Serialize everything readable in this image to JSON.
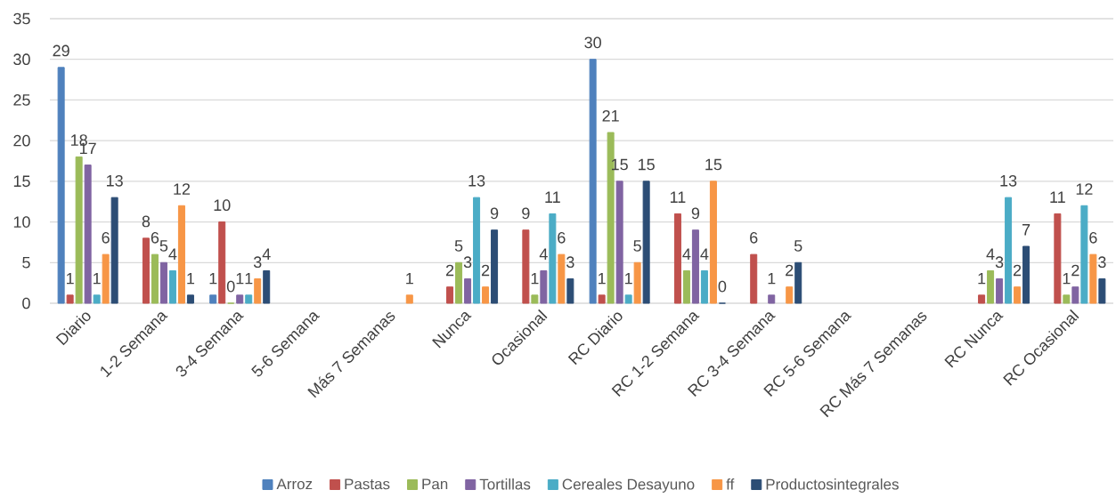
{
  "chart_data": {
    "type": "bar",
    "categories": [
      "Diario",
      "1-2 Semana",
      "3-4 Semana",
      "5-6 Semana",
      "Más 7 Semanas",
      "Nunca",
      "Ocasional",
      "RC Diario",
      "RC 1-2 Semana",
      "RC 3-4 Semana",
      "RC 5-6 Semana",
      "RC Más 7 Semanas",
      "RC Nunca",
      "RC Ocasional"
    ],
    "series": [
      {
        "name": "Arroz",
        "color": "#4f81bd",
        "values": [
          29,
          null,
          1,
          null,
          null,
          null,
          null,
          30,
          null,
          null,
          null,
          null,
          null,
          null
        ]
      },
      {
        "name": "Pastas",
        "color": "#c0504d",
        "values": [
          1,
          8,
          10,
          null,
          null,
          2,
          9,
          1,
          11,
          6,
          null,
          null,
          1,
          11
        ]
      },
      {
        "name": "Pan",
        "color": "#9bbb59",
        "values": [
          18,
          6,
          0,
          null,
          null,
          5,
          1,
          21,
          4,
          null,
          null,
          null,
          4,
          1
        ]
      },
      {
        "name": "Tortillas",
        "color": "#8064a2",
        "values": [
          17,
          5,
          1,
          null,
          null,
          3,
          4,
          15,
          9,
          1,
          null,
          null,
          3,
          2
        ]
      },
      {
        "name": "Cereales Desayuno",
        "color": "#4bacc6",
        "values": [
          1,
          4,
          1,
          null,
          null,
          13,
          11,
          1,
          4,
          null,
          null,
          null,
          13,
          12
        ]
      },
      {
        "name": "ff",
        "color": "#f79646",
        "values": [
          6,
          12,
          3,
          null,
          1,
          2,
          6,
          5,
          15,
          2,
          null,
          null,
          2,
          6
        ]
      },
      {
        "name": "Productosintegrales",
        "color": "#2c4d75",
        "values": [
          13,
          1,
          4,
          null,
          null,
          9,
          3,
          15,
          0,
          5,
          null,
          null,
          7,
          3
        ]
      }
    ],
    "ylim": [
      0,
      35
    ],
    "yticks": [
      0,
      5,
      10,
      15,
      20,
      25,
      30,
      35
    ],
    "grid": "y",
    "legend": "bottom",
    "data_labels": true
  }
}
